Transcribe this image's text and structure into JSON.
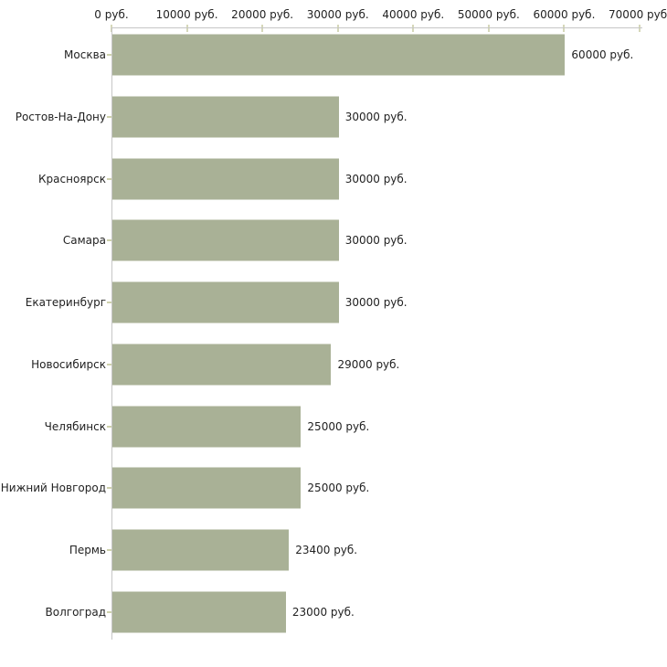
{
  "chart_data": {
    "type": "bar",
    "orientation": "horizontal",
    "title": "",
    "categories": [
      "Москва",
      "Ростов-На-Дону",
      "Красноярск",
      "Самара",
      "Екатеринбург",
      "Новосибирск",
      "Челябинск",
      "Нижний Новгород",
      "Пермь",
      "Волгоград"
    ],
    "values": [
      60000,
      30000,
      30000,
      30000,
      30000,
      29000,
      25000,
      25000,
      23400,
      23000
    ],
    "value_labels": [
      "60000 руб.",
      "30000 руб.",
      "30000 руб.",
      "30000 руб.",
      "30000 руб.",
      "29000 руб.",
      "25000 руб.",
      "25000 руб.",
      "23400 руб.",
      "23000 руб."
    ],
    "x_axis": {
      "position": "top",
      "min": 0,
      "max": 70000,
      "ticks": [
        0,
        10000,
        20000,
        30000,
        40000,
        50000,
        60000,
        70000
      ],
      "tick_labels": [
        "0 руб.",
        "10000 руб.",
        "20000 руб.",
        "30000 руб.",
        "40000 руб.",
        "50000 руб.",
        "60000 руб.",
        "70000 руб."
      ]
    },
    "legend": null,
    "grid": false,
    "colors": {
      "bar": "#a9b196",
      "axis_line": "#c6c6c6",
      "axis_tick": "#d6d8ba",
      "category_tick": "#ced1ac",
      "text": "#222222",
      "background": "#ffffff"
    }
  }
}
